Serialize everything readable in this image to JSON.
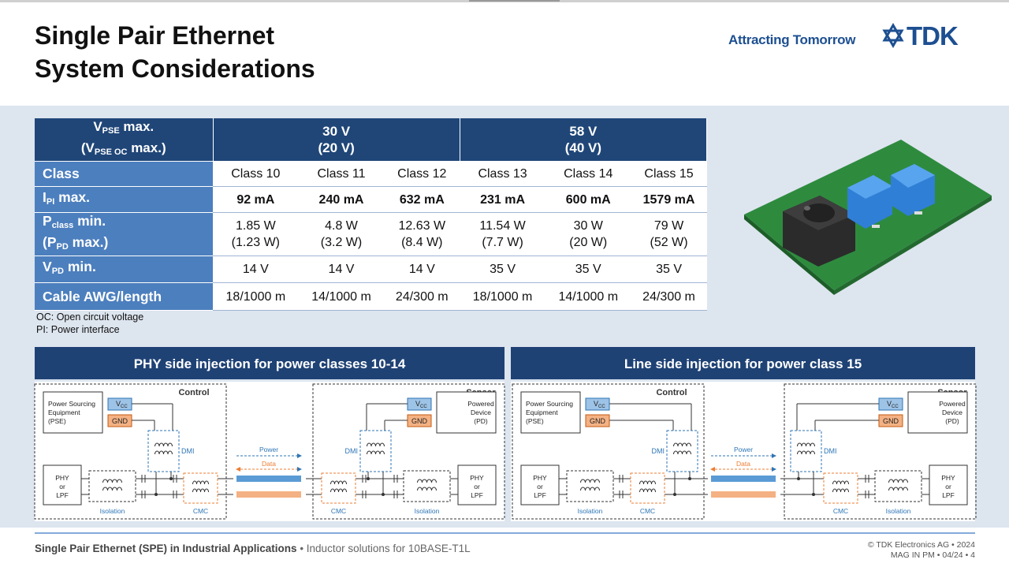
{
  "header": {
    "title": [
      "Single Pair Ethernet",
      "System Considerations"
    ],
    "tagline": "Attracting Tomorrow",
    "logo": "TDK"
  },
  "table": {
    "header": [
      [
        [
          {
            "text": "V"
          },
          {
            "text": "PSE",
            "sub": true
          },
          {
            "text": " max."
          }
        ],
        [
          {
            "text": "(V"
          },
          {
            "text": "PSE OC",
            "sub": true
          },
          {
            "text": " max.)"
          }
        ]
      ],
      [
        "30 V",
        "(20 V)"
      ],
      [
        "58 V",
        "(40 V)"
      ]
    ],
    "rows": [
      {
        "label": [
          "Class"
        ],
        "cells": [
          [
            "Class 10"
          ],
          [
            "Class 11"
          ],
          [
            "Class 12"
          ],
          [
            "Class 13"
          ],
          [
            "Class 14"
          ],
          [
            "Class 15"
          ]
        ]
      },
      {
        "label": [
          [
            {
              "text": "I"
            },
            {
              "text": "PI",
              "sub": true
            },
            {
              "text": " max."
            }
          ]
        ],
        "bold": true,
        "cells": [
          [
            "92 mA"
          ],
          [
            "240 mA"
          ],
          [
            "632 mA"
          ],
          [
            "231 mA"
          ],
          [
            "600 mA"
          ],
          [
            "1579 mA"
          ]
        ]
      },
      {
        "label": [
          [
            {
              "text": "P"
            },
            {
              "text": "class",
              "sub": true
            },
            {
              "text": " min."
            }
          ],
          [
            {
              "text": "(P"
            },
            {
              "text": "PD",
              "sub": true
            },
            {
              "text": " max.)"
            }
          ]
        ],
        "cells": [
          [
            "1.85 W",
            "(1.23 W)"
          ],
          [
            "4.8 W",
            "(3.2 W)"
          ],
          [
            "12.63 W",
            "(8.4 W)"
          ],
          [
            "11.54 W",
            "(7.7 W)"
          ],
          [
            "30 W",
            "(20 W)"
          ],
          [
            "79 W",
            "(52 W)"
          ]
        ]
      },
      {
        "label": [
          [
            {
              "text": "V"
            },
            {
              "text": "PD",
              "sub": true
            },
            {
              "text": " min."
            }
          ]
        ],
        "cells": [
          [
            "14 V"
          ],
          [
            "14 V"
          ],
          [
            "14 V"
          ],
          [
            "35 V"
          ],
          [
            "35 V"
          ],
          [
            "35 V"
          ]
        ]
      },
      {
        "label": [
          "Cable AWG/length"
        ],
        "cells": [
          [
            "18/1000 m"
          ],
          [
            "14/1000 m"
          ],
          [
            "24/300 m"
          ],
          [
            "18/1000 m"
          ],
          [
            "14/1000 m"
          ],
          [
            "24/300 m"
          ]
        ]
      }
    ],
    "notes": [
      "OC: Open circuit voltage",
      "PI: Power interface"
    ]
  },
  "panels": [
    {
      "title": "PHY side injection for power classes 10-14",
      "control": "Control",
      "sensor": "Sensor",
      "pse": [
        "Power Sourcing",
        "Equipment",
        "(PSE)"
      ],
      "pd": [
        "Powered",
        "Device",
        "(PD)"
      ],
      "vcc": [
        {
          "text": "V"
        },
        {
          "text": "CC",
          "sub": true
        }
      ],
      "gnd": "GND",
      "phy": [
        "PHY",
        "or",
        "LPF"
      ],
      "isolation": "Isolation",
      "dmi": "DMI",
      "cmc": "CMC",
      "power": "Power",
      "data": "Data"
    },
    {
      "title": "Line side injection for power class 15",
      "control": "Control",
      "sensor": "Sensor",
      "pse": [
        "Power Sourcing",
        "Equipment",
        "(PSE)"
      ],
      "pd": [
        "Powered",
        "Device",
        "(PD)"
      ],
      "vcc": [
        {
          "text": "V"
        },
        {
          "text": "CC",
          "sub": true
        }
      ],
      "gnd": "GND",
      "phy": [
        "PHY",
        "or",
        "LPF"
      ],
      "isolation": "Isolation",
      "dmi": "DMI",
      "cmc": "CMC",
      "power": "Power",
      "data": "Data"
    }
  ],
  "footer": {
    "topic": "Single Pair Ethernet (SPE) in Industrial Applications",
    "subtopic": " • Inductor solutions for 10BASE-T1L",
    "copyright": "© TDK Electronics AG • 2024",
    "code": "MAG IN PM • 04/24 • 4"
  }
}
